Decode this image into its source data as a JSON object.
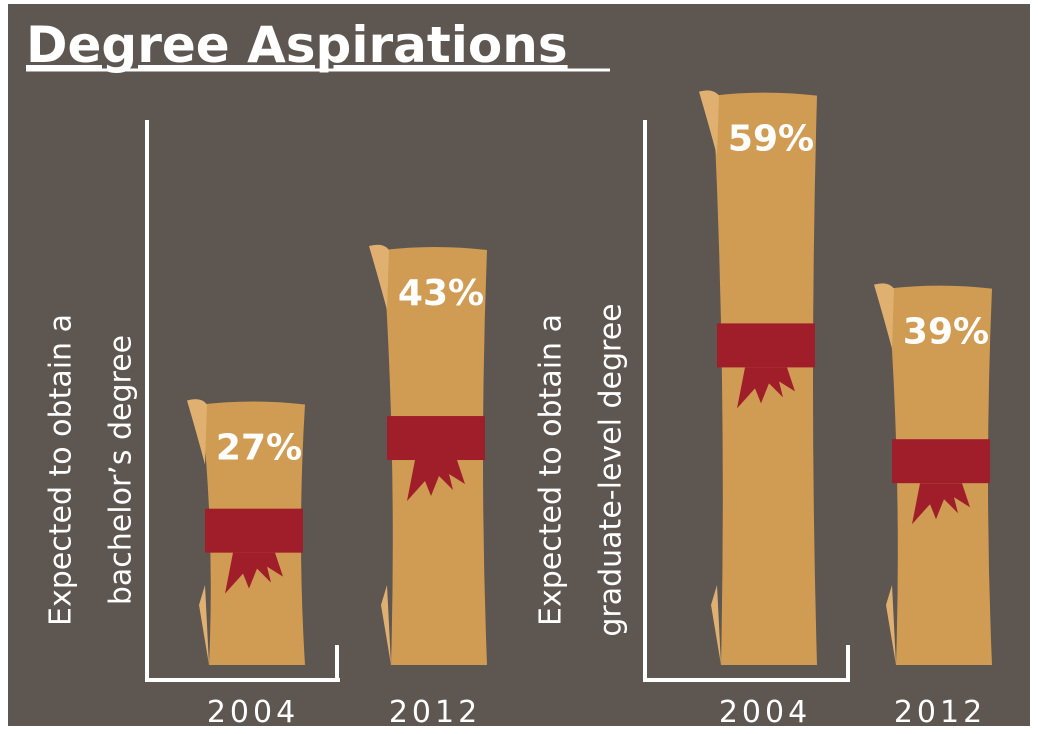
{
  "title": "Degree Aspirations",
  "chart_data": [
    {
      "type": "bar",
      "ylabel": [
        "Expected to obtain a",
        "bachelor’s degree"
      ],
      "categories": [
        "2004",
        "2012"
      ],
      "values": [
        27,
        43
      ],
      "value_labels": [
        "27%",
        "43%"
      ],
      "color": "#d09c53",
      "ribbon_color": "#a01e2a"
    },
    {
      "type": "bar",
      "ylabel": [
        "Expected to obtain a",
        "graduate-level degree"
      ],
      "categories": [
        "2004",
        "2012"
      ],
      "values": [
        59,
        39
      ],
      "value_labels": [
        "59%",
        "39%"
      ],
      "color": "#d09c53",
      "ribbon_color": "#a01e2a"
    }
  ]
}
